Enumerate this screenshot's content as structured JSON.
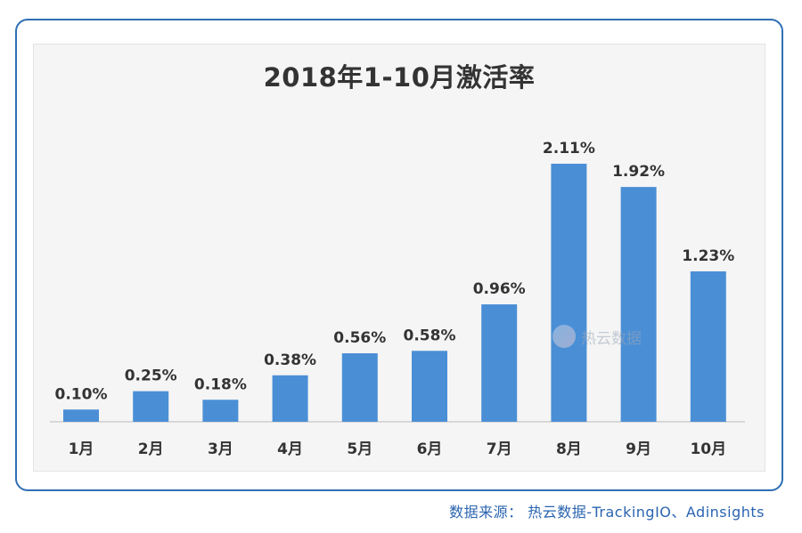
{
  "chart_data": {
    "type": "bar",
    "title": "2018年1-10月激活率",
    "categories": [
      "1月",
      "2月",
      "3月",
      "4月",
      "5月",
      "6月",
      "7月",
      "8月",
      "9月",
      "10月"
    ],
    "values": [
      0.1,
      0.25,
      0.18,
      0.38,
      0.56,
      0.58,
      0.96,
      2.11,
      1.92,
      1.23
    ],
    "data_labels": [
      "0.10%",
      "0.25%",
      "0.18%",
      "0.38%",
      "0.56%",
      "0.58%",
      "0.96%",
      "2.11%",
      "1.92%",
      "1.23%"
    ],
    "unit": "%",
    "ylim": [
      0,
      2.11
    ],
    "grid": false,
    "bar_color": "#4a8fd6"
  },
  "watermark": {
    "text": "热云数据"
  },
  "source": "数据来源： 热云数据-TrackingIO、Adinsights",
  "colors": {
    "frame": "#2f6fb5",
    "source_text": "#2a64b0"
  }
}
